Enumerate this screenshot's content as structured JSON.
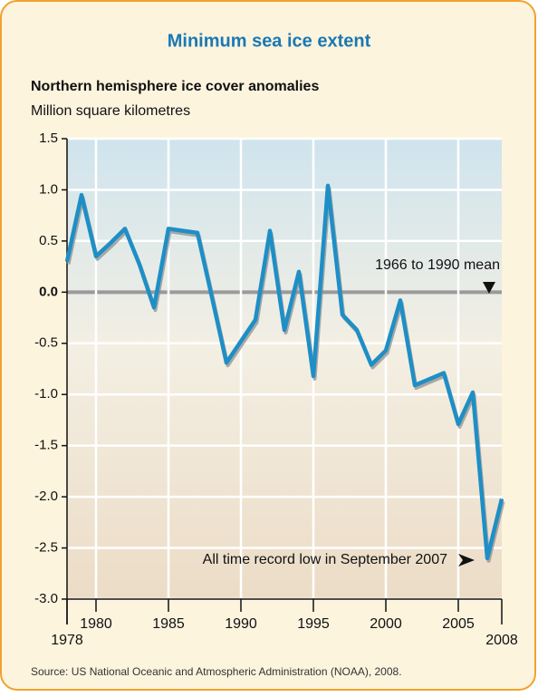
{
  "chart_data": {
    "type": "line",
    "title": "Minimum sea ice extent",
    "subtitle": "Northern hemisphere ice cover anomalies",
    "y_label": "Million square kilometres",
    "source": "Source: US National Oceanic and Atmospheric Administration (NOAA), 2008.",
    "annotations": [
      "1966 to 1990 mean",
      "All time record low in September 2007"
    ],
    "x": [
      1978,
      1979,
      1980,
      1981,
      1982,
      1983,
      1984,
      1985,
      1986,
      1987,
      1988,
      1989,
      1990,
      1991,
      1992,
      1993,
      1994,
      1995,
      1996,
      1997,
      1998,
      1999,
      2000,
      2001,
      2002,
      2003,
      2004,
      2005,
      2006,
      2007,
      2008
    ],
    "series": [
      {
        "name": "Northern hemisphere ice cover anomalies",
        "color": "#1e8fc6",
        "values": [
          0.3,
          0.95,
          0.35,
          0.48,
          0.62,
          0.27,
          -0.15,
          0.62,
          0.6,
          0.58,
          -0.05,
          -0.69,
          -0.48,
          -0.27,
          0.6,
          -0.37,
          0.2,
          -0.82,
          1.04,
          -0.22,
          -0.37,
          -0.71,
          -0.57,
          -0.08,
          -0.91,
          -0.85,
          -0.79,
          -1.29,
          -0.98,
          -2.6,
          -2.02
        ]
      }
    ],
    "xlim": [
      1978,
      2008
    ],
    "xticks": [
      1978,
      1980,
      1985,
      1990,
      1995,
      2000,
      2005,
      2008
    ],
    "ylim": [
      -3,
      1.5
    ],
    "yticks": [
      1.5,
      {
        "value": 1,
        "label": "1.0"
      },
      0.5,
      {
        "value": 0,
        "label": "0.0"
      },
      -0.5,
      {
        "value": -1,
        "label": "-1.0"
      },
      -1.5,
      {
        "value": -2,
        "label": "-2.0"
      },
      -2.5,
      {
        "value": -3,
        "label": "-3.0"
      }
    ],
    "grid": true
  }
}
